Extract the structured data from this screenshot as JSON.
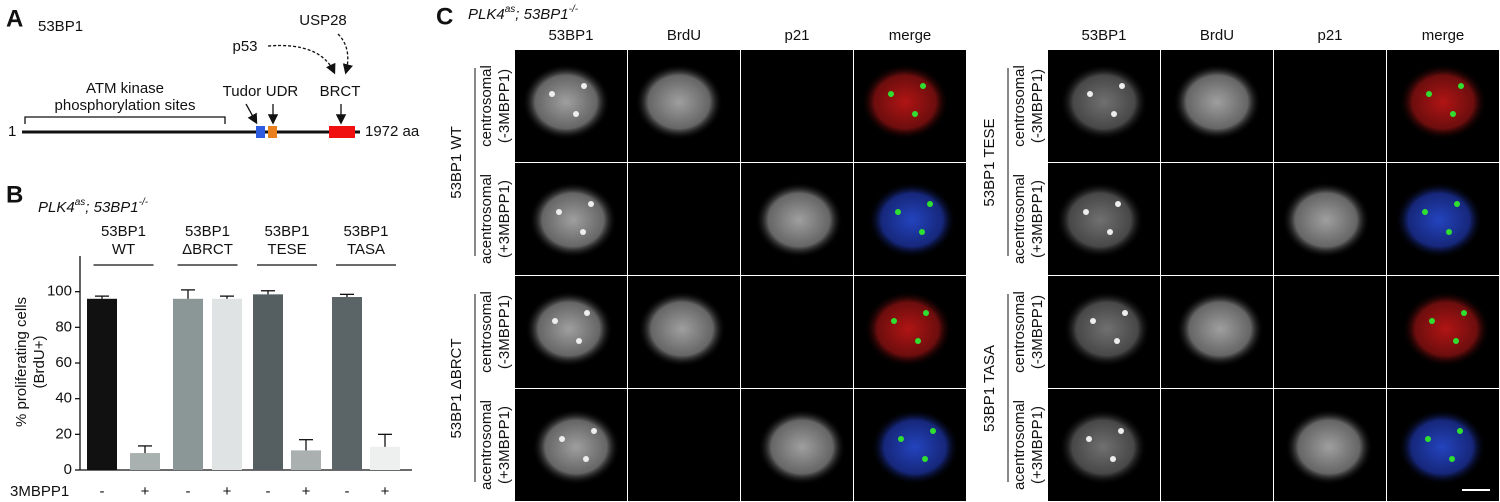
{
  "panel_a": {
    "letter": "A",
    "protein": "53BP1",
    "binders": [
      "p53",
      "USP28"
    ],
    "region_label": [
      "ATM kinase",
      "phosphorylation sites"
    ],
    "domains": [
      "Tudor",
      "UDR",
      "BRCT"
    ],
    "start": "1",
    "end": "1972 aa"
  },
  "chart_data": {
    "type": "bar",
    "letter": "B",
    "genotype": [
      "PLK4",
      "as",
      "; 53BP1",
      "-/-"
    ],
    "groups": [
      [
        "53BP1",
        "WT"
      ],
      [
        "53BP1",
        "ΔBRCT"
      ],
      [
        "53BP1",
        "TESE"
      ],
      [
        "53BP1",
        "TASA"
      ]
    ],
    "categories": [
      "-",
      "+",
      "-",
      "+",
      "-",
      "+",
      "-",
      "+"
    ],
    "values": [
      96,
      9.5,
      96,
      96,
      98.5,
      11,
      97,
      13
    ],
    "errors": [
      1.5,
      4,
      5,
      1.5,
      2,
      6,
      1.5,
      7
    ],
    "colors": [
      "#111111",
      "#a9b0b0",
      "#8b9696",
      "#dfe3e3",
      "#555f62",
      "#aab0b0",
      "#5b6467",
      "#eef0f0"
    ],
    "ylabel": [
      "% proliferating cells",
      "(BrdU+)"
    ],
    "xlabel": "3MBPP1",
    "ylim": [
      0,
      120
    ],
    "yticks": [
      0,
      20,
      40,
      60,
      80,
      100
    ]
  },
  "panel_c": {
    "letter": "C",
    "genotype": [
      "PLK4",
      "as",
      "; 53BP1",
      "-/-"
    ],
    "channels": [
      {
        "name": "53BP1",
        "color": "#3ccf3c"
      },
      {
        "name": "BrdU",
        "color": "#e02020"
      },
      {
        "name": "p21",
        "color": "#2a55d8"
      },
      {
        "name": "merge",
        "color": "#111111"
      }
    ],
    "blocks": [
      {
        "groups": [
          "53BP1 WT",
          "53BP1 ΔBRCT"
        ]
      },
      {
        "groups": [
          "53BP1 TESE",
          "53BP1 TASA"
        ]
      }
    ],
    "conditions": [
      [
        "centrosomal",
        "(-3MBPP1)"
      ],
      [
        "acentrosomal",
        "(+3MBPP1)"
      ]
    ]
  }
}
